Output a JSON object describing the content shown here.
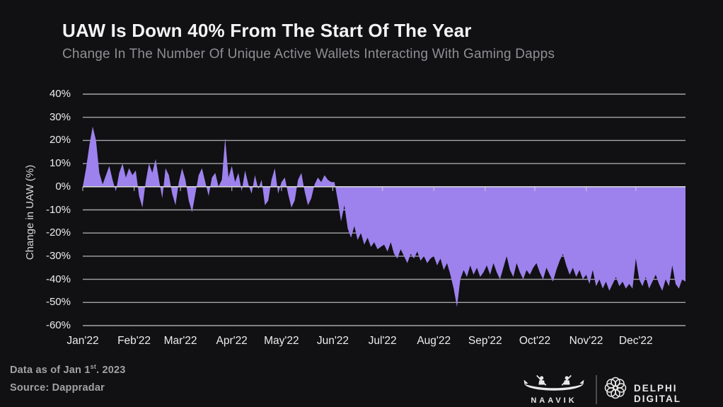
{
  "header": {
    "title": "UAW Is Down 40% From The Start Of The Year",
    "subtitle": "Change In The Number Of Unique Active Wallets Interacting With Gaming Dapps"
  },
  "footer": {
    "data_as_of_prefix": "Data as of Jan 1",
    "data_as_of_sup": "st",
    "data_as_of_suffix": ". 2023",
    "source": "Source: Dappradar",
    "naavik_label": "NAAVIK",
    "delphi_label": "DELPHI DIGITAL"
  },
  "colors": {
    "background": "#111012",
    "fill": "#9d82ee",
    "grid": "#bfbfc2",
    "axis_line": "#d4d4d6",
    "title": "#f4f4f4",
    "subtitle": "#8f8f93",
    "axis_text": "#ededee",
    "footer_text": "#a2a2a5"
  },
  "chart_data": {
    "type": "area",
    "title": "UAW Is Down 40% From The Start Of The Year",
    "subtitle": "Change In The Number Of Unique Active Wallets Interacting With Gaming Dapps",
    "xlabel": "",
    "ylabel": "Change in UAW (%)",
    "ylim": [
      -60,
      40
    ],
    "yticks": [
      40,
      30,
      20,
      10,
      0,
      -10,
      -20,
      -30,
      -40,
      -50,
      -60
    ],
    "ytick_suffix": "%",
    "grid": true,
    "legend": false,
    "categories": [
      "Jan'22",
      "Feb'22",
      "Mar'22",
      "Apr'22",
      "May'22",
      "Jun'22",
      "Jul'22",
      "Aug'22",
      "Sep'22",
      "Oct'22",
      "Nov'22",
      "Dec'22"
    ],
    "month_start_days": [
      1,
      32,
      60,
      91,
      121,
      152,
      182,
      213,
      244,
      274,
      305,
      335
    ],
    "x_domain_days": [
      1,
      365
    ],
    "sample_step_days": 2,
    "units": "percent change in unique active wallets vs Jan 1 2022, daily (sampled every 2 days)",
    "values": [
      0,
      8,
      18,
      26,
      20,
      6,
      1,
      5,
      9,
      3,
      -2,
      6,
      10,
      4,
      8,
      5,
      7,
      -4,
      -9,
      2,
      10,
      6,
      12,
      3,
      -5,
      8,
      5,
      -3,
      -8,
      2,
      8,
      3,
      -6,
      -11,
      -3,
      5,
      8,
      2,
      -4,
      4,
      6,
      0,
      3,
      21,
      4,
      9,
      2,
      6,
      -2,
      7,
      1,
      -3,
      5,
      -1,
      3,
      -8,
      -6,
      3,
      8,
      -3,
      2,
      4,
      -3,
      -9,
      -6,
      3,
      6,
      -2,
      -8,
      -5,
      1,
      4,
      2,
      5,
      3,
      2,
      2,
      -6,
      -15,
      -8,
      -18,
      -22,
      -17,
      -23,
      -20,
      -25,
      -22,
      -26,
      -24,
      -27,
      -26,
      -25,
      -28,
      -24,
      -29,
      -31,
      -27,
      -30,
      -33,
      -29,
      -31,
      -28,
      -32,
      -30,
      -33,
      -31,
      -30,
      -34,
      -31,
      -36,
      -33,
      -38,
      -44,
      -52,
      -40,
      -36,
      -39,
      -34,
      -38,
      -35,
      -39,
      -37,
      -34,
      -38,
      -33,
      -37,
      -40,
      -35,
      -30,
      -36,
      -39,
      -33,
      -37,
      -40,
      -36,
      -38,
      -35,
      -33,
      -37,
      -40,
      -35,
      -38,
      -41,
      -36,
      -32,
      -29,
      -34,
      -38,
      -35,
      -39,
      -36,
      -40,
      -38,
      -42,
      -36,
      -43,
      -40,
      -44,
      -41,
      -45,
      -42,
      -39,
      -43,
      -41,
      -44,
      -42,
      -44,
      -31,
      -40,
      -43,
      -39,
      -44,
      -41,
      -38,
      -42,
      -45,
      -40,
      -43,
      -34,
      -42,
      -44,
      -40,
      -41
    ]
  }
}
